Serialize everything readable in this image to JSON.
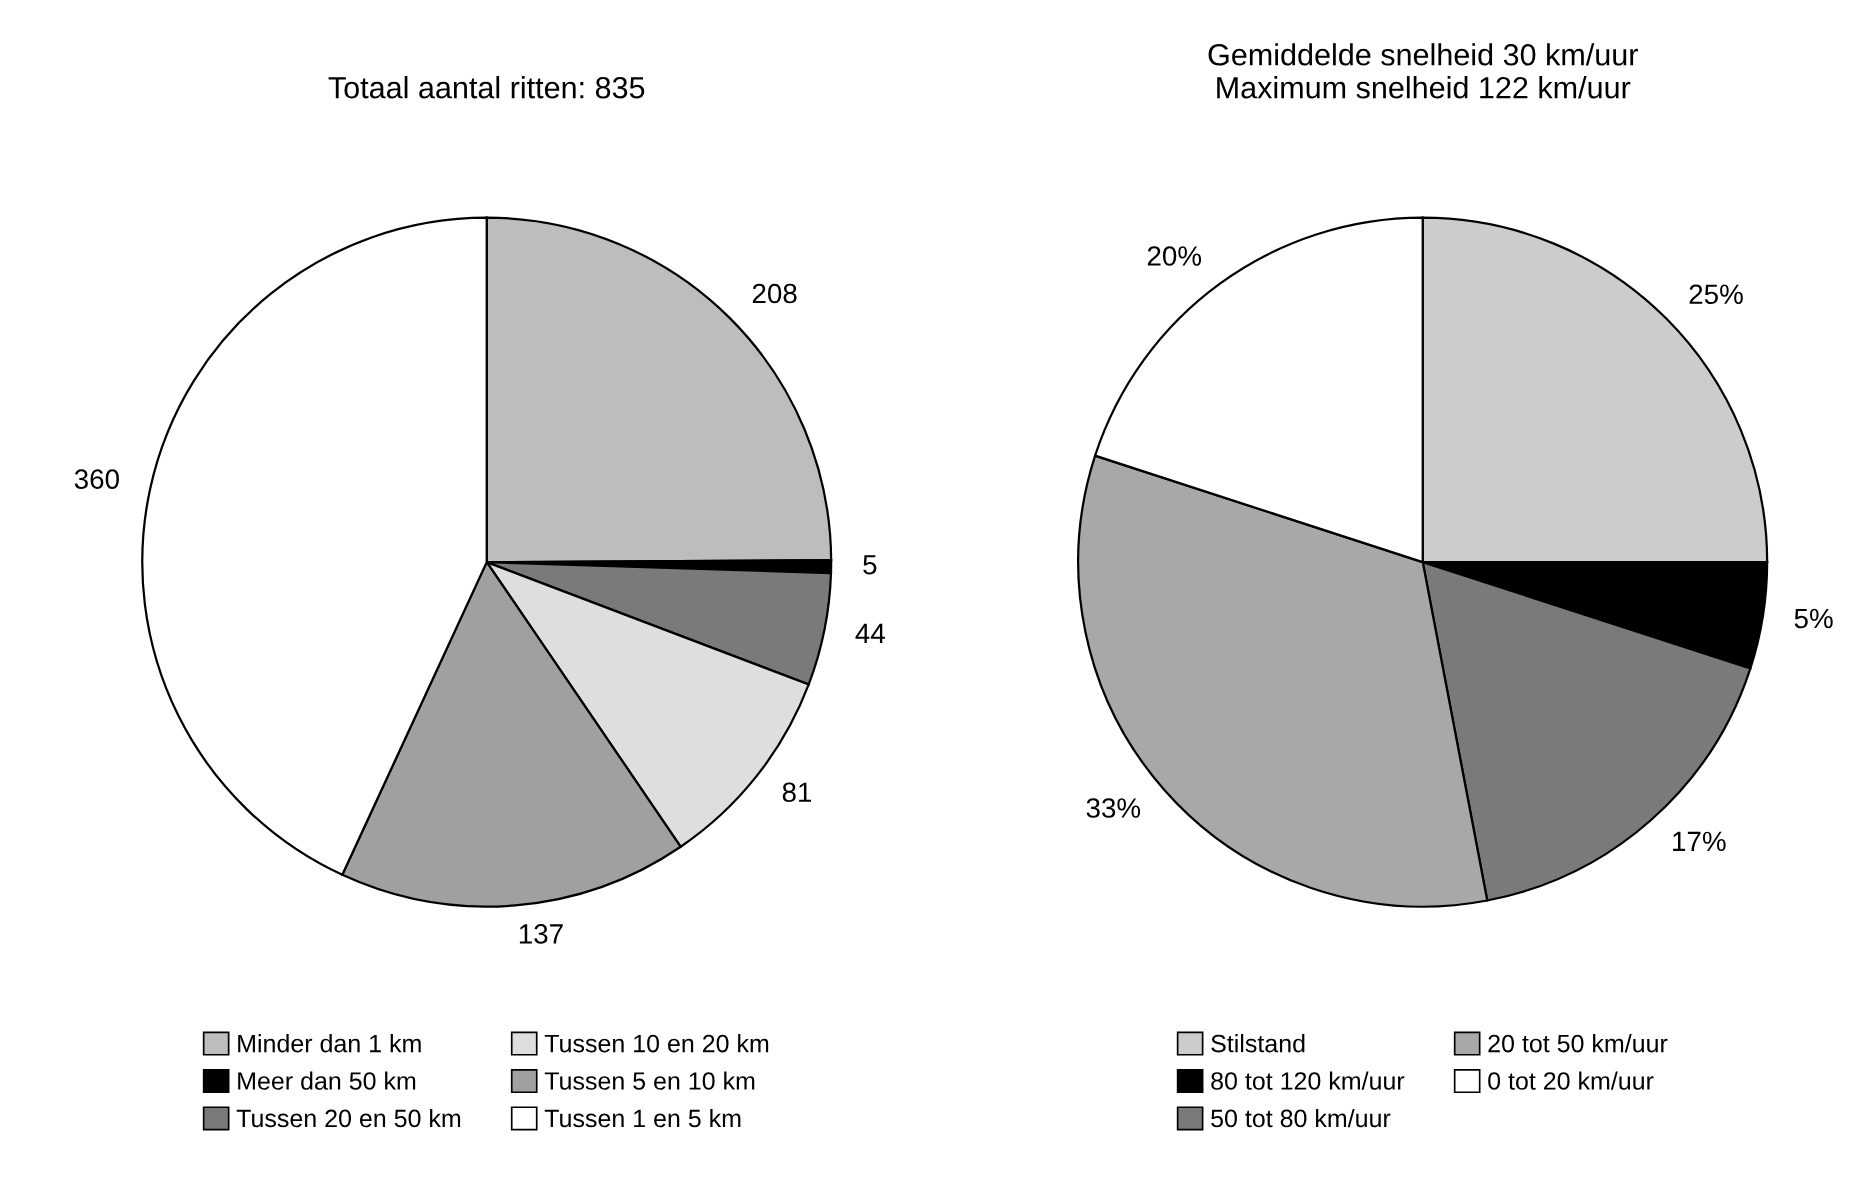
{
  "chart_data": [
    {
      "type": "pie",
      "title": "Totaal aantal ritten: 835",
      "categories": [
        "Minder dan 1 km",
        "Meer dan 50 km",
        "Tussen 20 en 50 km",
        "Tussen 10 en 20 km",
        "Tussen 5 en 10 km",
        "Tussen 1 en 5 km"
      ],
      "values": [
        208,
        5,
        44,
        81,
        137,
        360
      ],
      "colors": [
        "#bdbdbd",
        "#000000",
        "#7a7a7a",
        "#dedede",
        "#a0a0a0",
        "#ffffff"
      ],
      "data_labels": true,
      "legend": "bottom"
    },
    {
      "type": "pie",
      "title": "Gemiddelde snelheid 30 km/uur\nMaximum snelheid 122 km/uur",
      "categories": [
        "Stilstand",
        "80 tot 120 km/uur",
        "50 tot 80 km/uur",
        "20 tot 50 km/uur",
        "0 tot 20 km/uur"
      ],
      "values": [
        25,
        5,
        17,
        33,
        20
      ],
      "value_labels": [
        "25%",
        "5%",
        "17%",
        "33%",
        "20%"
      ],
      "colors": [
        "#cccccc",
        "#000000",
        "#7a7a7a",
        "#a8a8a8",
        "#ffffff"
      ],
      "legend": "bottom"
    }
  ]
}
